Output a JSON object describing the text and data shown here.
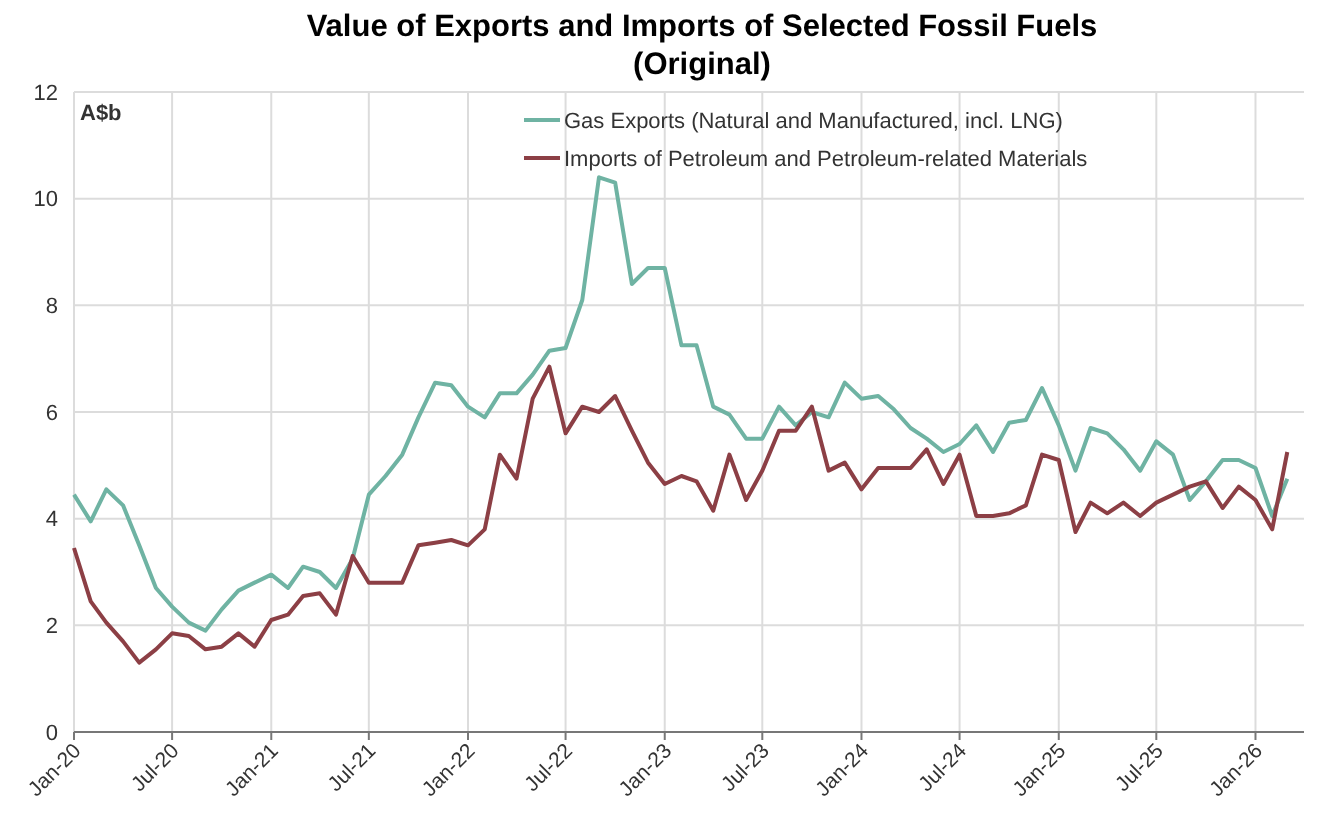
{
  "chart_data": {
    "type": "line",
    "title": "Value of Exports and Imports of Selected Fossil Fuels\n(Original)",
    "ylabel": "A$b",
    "x": [
      "2020-01",
      "2020-02",
      "2020-03",
      "2020-04",
      "2020-05",
      "2020-06",
      "2020-07",
      "2020-08",
      "2020-09",
      "2020-10",
      "2020-11",
      "2020-12",
      "2021-01",
      "2021-02",
      "2021-03",
      "2021-04",
      "2021-05",
      "2021-06",
      "2021-07",
      "2021-08",
      "2021-09",
      "2021-10",
      "2021-11",
      "2021-12",
      "2022-01",
      "2022-02",
      "2022-03",
      "2022-04",
      "2022-05",
      "2022-06",
      "2022-07",
      "2022-08",
      "2022-09",
      "2022-10",
      "2022-11",
      "2022-12",
      "2023-01",
      "2023-02",
      "2023-03",
      "2023-04",
      "2023-05",
      "2023-06",
      "2023-07",
      "2023-08",
      "2023-09",
      "2023-10",
      "2023-11",
      "2023-12",
      "2024-01",
      "2024-02",
      "2024-03",
      "2024-04",
      "2024-05",
      "2024-06",
      "2024-07",
      "2024-08",
      "2024-09",
      "2024-10",
      "2024-11",
      "2024-12",
      "2025-01",
      "2025-02",
      "2025-03",
      "2025-04",
      "2025-05",
      "2025-06",
      "2025-07",
      "2025-08",
      "2025-09",
      "2025-10",
      "2025-11",
      "2025-12",
      "2026-01",
      "2026-02",
      "2026-03"
    ],
    "series": [
      {
        "name": "Gas Exports (Natural and Manufactured, incl. LNG)",
        "color": "#6fb3a3",
        "values": [
          4.45,
          3.95,
          4.55,
          4.25,
          3.5,
          2.7,
          2.35,
          2.05,
          1.9,
          2.3,
          2.65,
          2.8,
          2.95,
          2.7,
          3.1,
          3.0,
          2.7,
          3.25,
          4.45,
          4.8,
          5.2,
          5.9,
          6.55,
          6.5,
          6.1,
          5.9,
          6.35,
          6.35,
          6.7,
          7.15,
          7.2,
          8.1,
          10.4,
          10.3,
          8.4,
          8.7,
          8.7,
          7.25,
          7.25,
          6.1,
          5.95,
          5.5,
          5.5,
          6.1,
          5.75,
          6.0,
          5.9,
          6.55,
          6.25,
          6.3,
          6.05,
          5.7,
          5.5,
          5.25,
          5.4,
          5.75,
          5.25,
          5.8,
          5.85,
          6.45,
          5.75,
          4.9,
          5.7,
          5.6,
          5.3,
          4.9,
          5.45,
          5.2,
          4.35,
          4.7,
          5.1,
          5.1,
          4.95,
          4.05,
          4.75
        ]
      },
      {
        "name": "Imports of Petroleum and Petroleum-related Materials",
        "color": "#8c3f45",
        "values": [
          3.45,
          2.45,
          2.05,
          1.7,
          1.3,
          1.55,
          1.85,
          1.8,
          1.55,
          1.6,
          1.85,
          1.6,
          2.1,
          2.2,
          2.55,
          2.6,
          2.2,
          3.3,
          2.8,
          2.8,
          2.8,
          3.5,
          3.55,
          3.6,
          3.5,
          3.8,
          5.2,
          4.75,
          6.25,
          6.85,
          5.6,
          6.1,
          6.0,
          6.3,
          5.65,
          5.05,
          4.65,
          4.8,
          4.7,
          4.15,
          5.2,
          4.35,
          4.9,
          5.65,
          5.65,
          6.1,
          4.9,
          5.05,
          4.55,
          4.95,
          4.95,
          4.95,
          5.3,
          4.65,
          5.2,
          4.05,
          4.05,
          4.1,
          4.25,
          5.2,
          5.1,
          3.75,
          4.3,
          4.1,
          4.3,
          4.05,
          4.3,
          4.45,
          4.6,
          4.7,
          4.2,
          4.6,
          4.35,
          3.8,
          5.25
        ]
      }
    ],
    "xlim": [
      "2020-01",
      "2026-04"
    ],
    "xticks": [
      {
        "value": "2020-01",
        "label": "Jan-20"
      },
      {
        "value": "2020-07",
        "label": "Jul-20"
      },
      {
        "value": "2021-01",
        "label": "Jan-21"
      },
      {
        "value": "2021-07",
        "label": "Jul-21"
      },
      {
        "value": "2022-01",
        "label": "Jan-22"
      },
      {
        "value": "2022-07",
        "label": "Jul-22"
      },
      {
        "value": "2023-01",
        "label": "Jan-23"
      },
      {
        "value": "2023-07",
        "label": "Jul-23"
      },
      {
        "value": "2024-01",
        "label": "Jan-24"
      },
      {
        "value": "2024-07",
        "label": "Jul-24"
      },
      {
        "value": "2025-01",
        "label": "Jan-25"
      },
      {
        "value": "2025-07",
        "label": "Jul-25"
      },
      {
        "value": "2026-01",
        "label": "Jan-26"
      }
    ],
    "ylim": [
      0,
      12
    ],
    "yticks": [
      0,
      2,
      4,
      6,
      8,
      10,
      12
    ],
    "grid": true,
    "legend": "top right",
    "marker": "none",
    "line_style": "solid"
  }
}
